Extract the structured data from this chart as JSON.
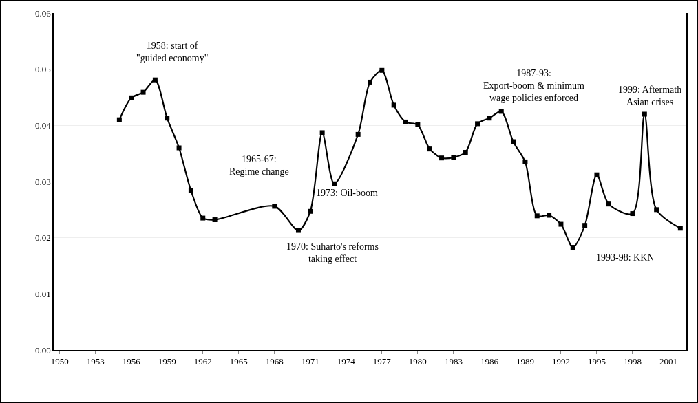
{
  "chart_data": {
    "type": "line",
    "x": [
      1955,
      1956,
      1957,
      1958,
      1959,
      1960,
      1961,
      1962,
      1963,
      1968,
      1970,
      1971,
      1972,
      1973,
      1975,
      1976,
      1977,
      1978,
      1979,
      1980,
      1981,
      1982,
      1983,
      1984,
      1985,
      1986,
      1987,
      1988,
      1989,
      1990,
      1991,
      1992,
      1993,
      1994,
      1995,
      1996,
      1998,
      1999,
      2000,
      2002
    ],
    "series": [
      {
        "color": "#000000",
        "values": [
          0.041,
          0.0449,
          0.0459,
          0.0481,
          0.0413,
          0.036,
          0.0284,
          0.0235,
          0.0232,
          0.0256,
          0.0213,
          0.0247,
          0.0387,
          0.0296,
          0.0384,
          0.0477,
          0.0498,
          0.0436,
          0.0406,
          0.0401,
          0.0358,
          0.0342,
          0.0343,
          0.0352,
          0.0403,
          0.0413,
          0.0425,
          0.0371,
          0.0335,
          0.0239,
          0.024,
          0.0224,
          0.0183,
          0.0222,
          0.0312,
          0.026,
          0.0243,
          0.042,
          0.025,
          0.0217
        ]
      }
    ],
    "xlim": [
      1949.5,
      2002.5
    ],
    "xticks": [
      1950,
      1953,
      1956,
      1959,
      1962,
      1965,
      1968,
      1971,
      1974,
      1977,
      1980,
      1983,
      1986,
      1989,
      1992,
      1995,
      1998,
      2001
    ],
    "ylim": [
      0,
      0.06
    ],
    "yticks": [
      {
        "value": 0,
        "label": "0.00"
      },
      {
        "value": 0.01,
        "label": "0.01"
      },
      {
        "value": 0.02,
        "label": "0.02"
      },
      {
        "value": 0.03,
        "label": "0.03"
      },
      {
        "value": 0.04,
        "label": "0.04"
      },
      {
        "value": 0.05,
        "label": "0.05"
      },
      {
        "value": 0.06,
        "label": "0.06"
      }
    ],
    "grid": "y",
    "marker": "square",
    "line_style": "solid",
    "annotations": [
      {
        "text": "1958: start of\n\"guided economy\"",
        "x": 1958,
        "y": 0.0481
      },
      "1965-67:\nRegime change",
      {
        "text": "1973: Oil-boom",
        "x": 1973,
        "y": 0.0296
      },
      {
        "text": "1970: Suharto's reforms\ntaking effect",
        "x": 1970,
        "y": 0.0213
      },
      {
        "text": "1987-93:\nExport-boom & minimum\nwage policies enforced",
        "x": 1987,
        "y": 0.0425
      },
      {
        "text": "1993-98: KKN",
        "x": 1993,
        "y": 0.0183
      },
      {
        "text": "1999: Aftermath\nAsian crises",
        "x": 1999,
        "y": 0.042
      }
    ]
  }
}
